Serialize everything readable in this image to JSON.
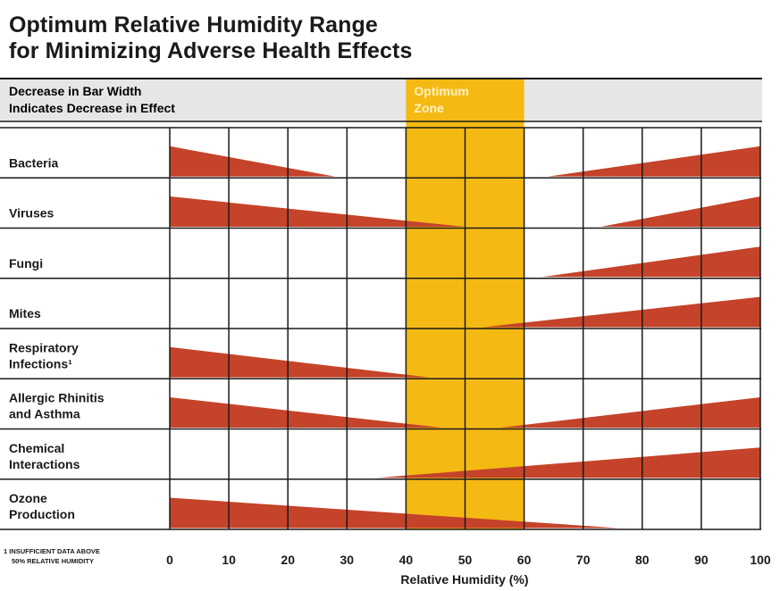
{
  "title_line1": "Optimum Relative Humidity Range",
  "title_line2": "for Minimizing Adverse Health Effects",
  "colors": {
    "wedge": "#c5432a",
    "optimum": "#f5b914",
    "header_bg": "#e6e6e6",
    "optimum_label": "#fff3c4"
  },
  "chart_data": {
    "type": "range-wedge",
    "header_note_line1": "Decrease in Bar Width",
    "header_note_line2": "Indicates Decrease in Effect",
    "optimum_label_line1": "Optimum",
    "optimum_label_line2": "Zone",
    "optimum_range": [
      40,
      60
    ],
    "xlabel": "Relative Humidity (%)",
    "xlim": [
      0,
      100
    ],
    "xticks": [
      0,
      10,
      20,
      30,
      40,
      50,
      60,
      70,
      80,
      90,
      100
    ],
    "footnote_line1": "1 INSUFFICIENT DATA ABOVE",
    "footnote_line2": "50% RELATIVE HUMIDITY",
    "rows": [
      {
        "label_lines": [
          "Bacteria"
        ],
        "low_end": 28,
        "high_start": 64
      },
      {
        "label_lines": [
          "Viruses"
        ],
        "low_end": 50,
        "high_start": 73
      },
      {
        "label_lines": [
          "Fungi"
        ],
        "low_end": null,
        "high_start": 63
      },
      {
        "label_lines": [
          "Mites"
        ],
        "low_end": null,
        "high_start": 53
      },
      {
        "label_lines": [
          "Respiratory",
          "Infections¹"
        ],
        "low_end": 44,
        "high_start": null
      },
      {
        "label_lines": [
          "Allergic Rhinitis",
          "and Asthma"
        ],
        "low_end": 46,
        "high_start": 56
      },
      {
        "label_lines": [
          "Chemical",
          "Interactions"
        ],
        "low_end": null,
        "high_start": 35
      },
      {
        "label_lines": [
          "Ozone",
          "Production"
        ],
        "low_end": 76,
        "high_start": null
      }
    ]
  }
}
